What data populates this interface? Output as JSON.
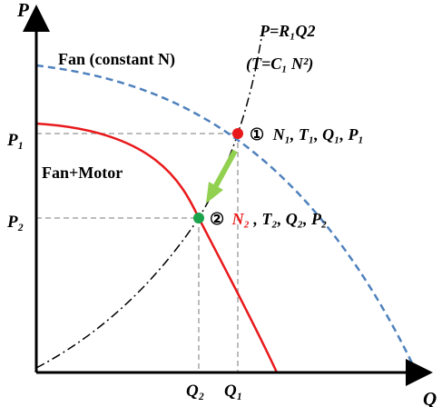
{
  "axes": {
    "y_label": "P",
    "x_label": "Q"
  },
  "curves": {
    "fan_label": "Fan (constant N)",
    "fan_motor_label": "Fan+Motor",
    "system_label_line1": "P=R₁Q2",
    "system_label_line2": "(T=C₁ N²)"
  },
  "ticks": {
    "p1": "P₁",
    "p2": "P₂",
    "q1": "Q₁",
    "q2": "Q₂"
  },
  "points": {
    "point1": {
      "marker": "①",
      "label_prefix": "N₁, T₁, Q₁, P₁",
      "color": "#e8191b"
    },
    "point2": {
      "marker": "②",
      "label_n": "N₂",
      "label_rest": ", T₂, Q₂, P₂",
      "color": "#1aa34a"
    }
  },
  "colors": {
    "fan_curve": "#4f81bd",
    "fan_motor_curve": "#e8191b",
    "system_curve": "#000000",
    "transition_arrow": "#92d050",
    "guide_lines": "#a6a6a6",
    "highlight_text": "#e8191b"
  }
}
